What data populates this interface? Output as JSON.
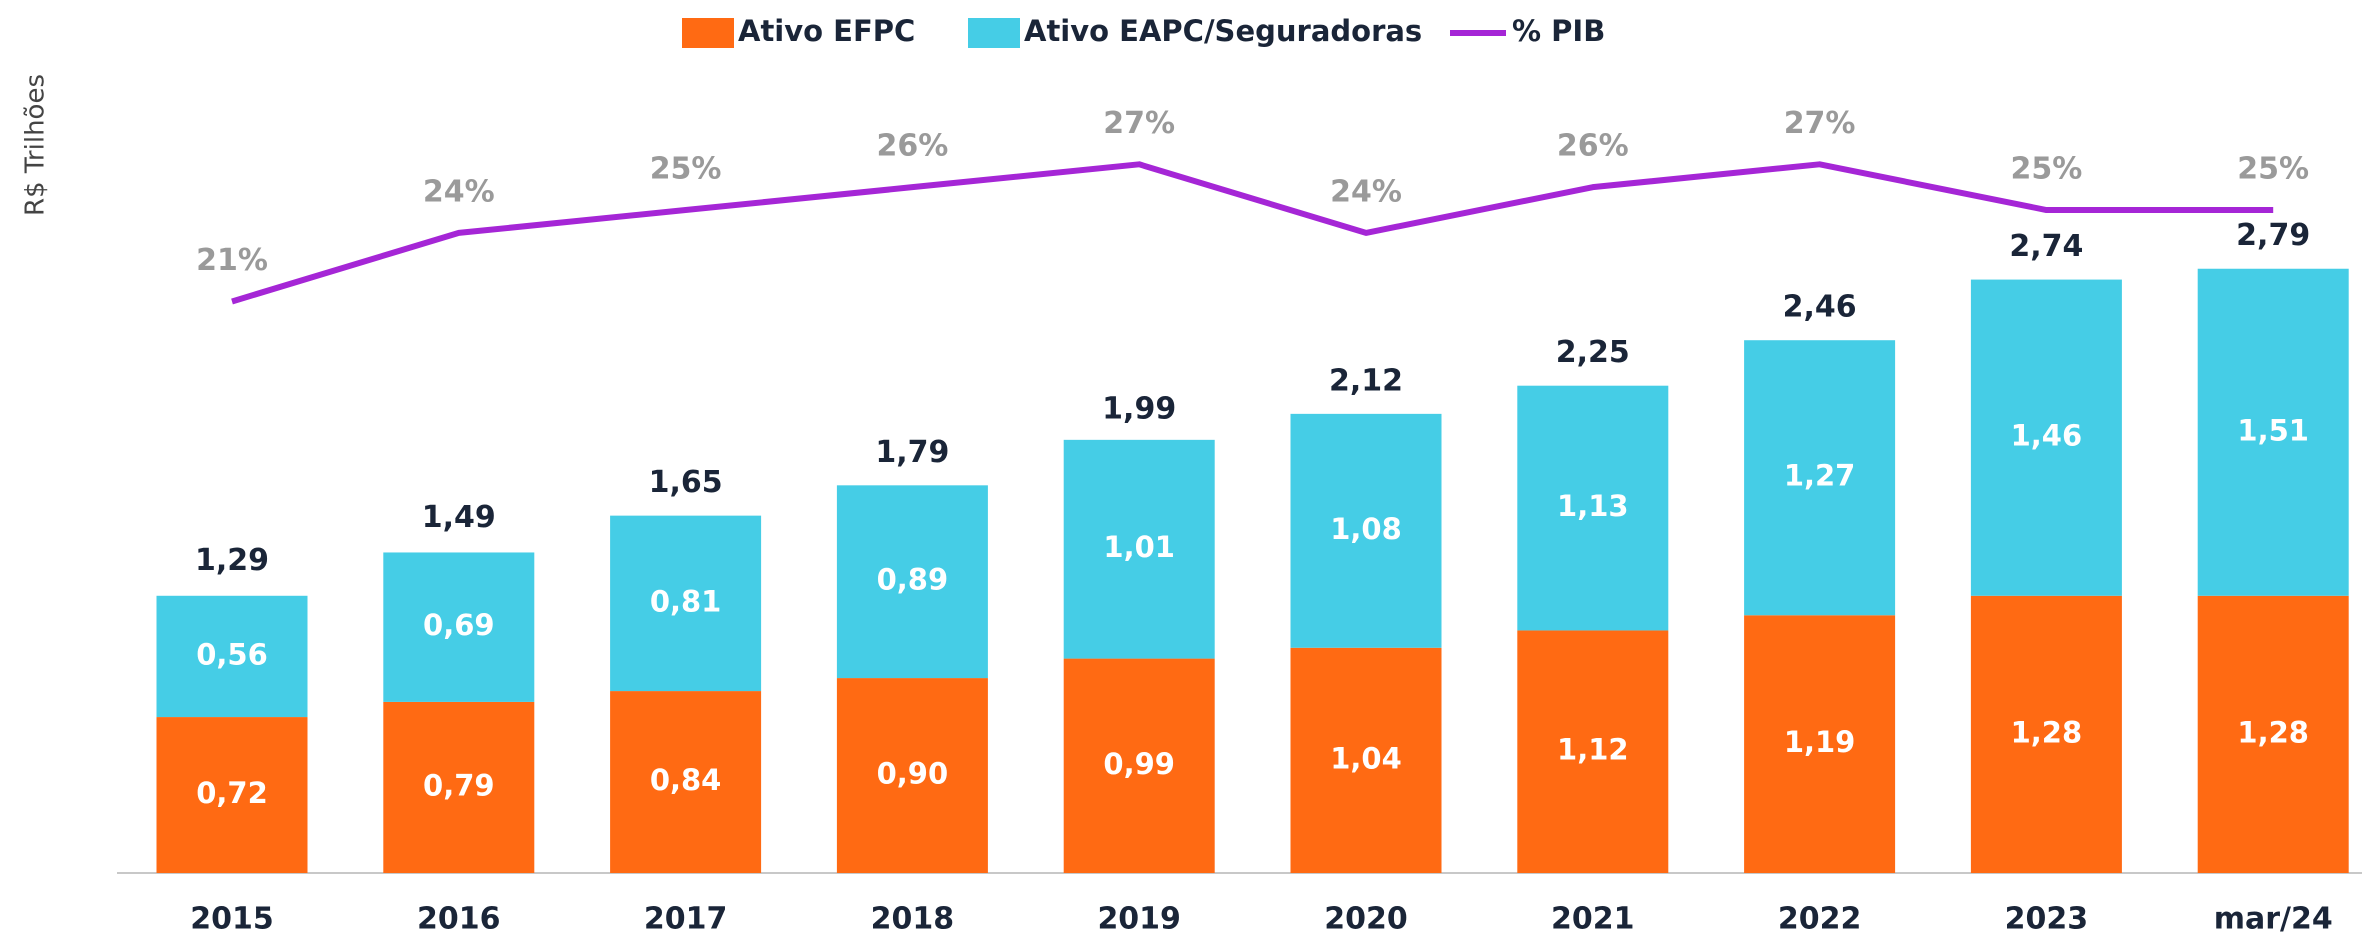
{
  "chart_data": {
    "type": "stacked-bar-line",
    "y_label": "R$ Trilhões",
    "categories": [
      "2015",
      "2016",
      "2017",
      "2018",
      "2019",
      "2020",
      "2021",
      "2022",
      "2023",
      "mar/24"
    ],
    "ylim": [
      0,
      3.8
    ],
    "y2lim": [
      -4,
      32
    ],
    "series": [
      {
        "name": "Ativo EFPC",
        "color": "#ff6a13",
        "values": [
          0.72,
          0.79,
          0.84,
          0.9,
          0.99,
          1.04,
          1.12,
          1.19,
          1.28,
          1.28
        ],
        "value_labels": [
          "0,72",
          "0,79",
          "0,84",
          "0,90",
          "0,99",
          "1,04",
          "1,12",
          "1,19",
          "1,28",
          "1,28"
        ]
      },
      {
        "name": "Ativo EAPC/Seguradoras",
        "color": "#45cde6",
        "values": [
          0.56,
          0.69,
          0.81,
          0.89,
          1.01,
          1.08,
          1.13,
          1.27,
          1.46,
          1.51
        ],
        "value_labels": [
          "0,56",
          "0,69",
          "0,81",
          "0,89",
          "1,01",
          "1,08",
          "1,13",
          "1,27",
          "1,46",
          "1,51"
        ]
      },
      {
        "name": "% PIB",
        "color": "#a526d6",
        "axis": "y2",
        "type": "line",
        "values": [
          21,
          24,
          25,
          26,
          27,
          24,
          26,
          27,
          25,
          25
        ],
        "value_labels": [
          "21%",
          "24%",
          "25%",
          "26%",
          "27%",
          "24%",
          "26%",
          "27%",
          "25%",
          "25%"
        ]
      }
    ],
    "totals": {
      "values": [
        1.29,
        1.49,
        1.65,
        1.79,
        1.99,
        2.12,
        2.25,
        2.46,
        2.74,
        2.79
      ],
      "value_labels": [
        "1,29",
        "1,49",
        "1,65",
        "1,79",
        "1,99",
        "2,12",
        "2,25",
        "2,46",
        "2,74",
        "2,79"
      ]
    },
    "legend": "top"
  }
}
